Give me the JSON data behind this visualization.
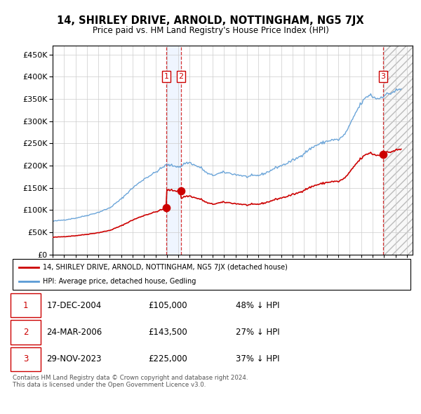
{
  "title": "14, SHIRLEY DRIVE, ARNOLD, NOTTINGHAM, NG5 7JX",
  "subtitle": "Price paid vs. HM Land Registry's House Price Index (HPI)",
  "ytick_values": [
    0,
    50000,
    100000,
    150000,
    200000,
    250000,
    300000,
    350000,
    400000,
    450000
  ],
  "ylim": [
    0,
    470000
  ],
  "xlim_start": 1995.0,
  "xlim_end": 2026.5,
  "hpi_color": "#5b9bd5",
  "price_color": "#cc0000",
  "sale1_date": 2004.96,
  "sale1_price": 105000,
  "sale2_date": 2006.23,
  "sale2_price": 143500,
  "sale3_date": 2023.91,
  "sale3_price": 225000,
  "legend_label1": "14, SHIRLEY DRIVE, ARNOLD, NOTTINGHAM, NG5 7JX (detached house)",
  "legend_label2": "HPI: Average price, detached house, Gedling",
  "table_rows": [
    {
      "num": "1",
      "date": "17-DEC-2004",
      "price": "£105,000",
      "pct": "48% ↓ HPI"
    },
    {
      "num": "2",
      "date": "24-MAR-2006",
      "price": "£143,500",
      "pct": "27% ↓ HPI"
    },
    {
      "num": "3",
      "date": "29-NOV-2023",
      "price": "£225,000",
      "pct": "37% ↓ HPI"
    }
  ],
  "footnote": "Contains HM Land Registry data © Crown copyright and database right 2024.\nThis data is licensed under the Open Government Licence v3.0.",
  "bg_color": "#ffffff",
  "grid_color": "#cccccc"
}
